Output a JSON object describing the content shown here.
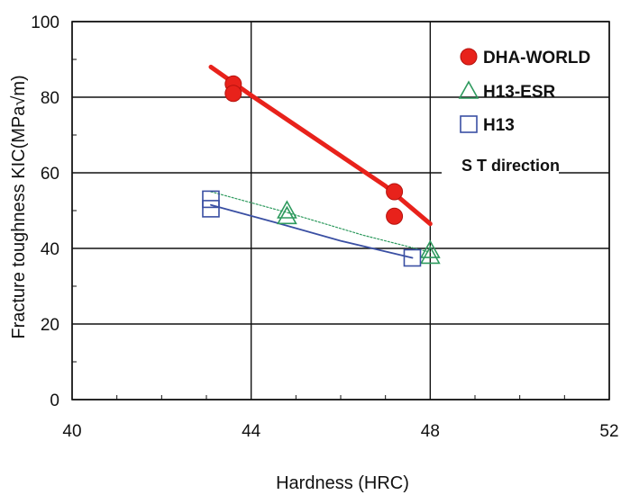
{
  "chart_data": {
    "type": "scatter",
    "title": "",
    "xlabel": "Hardness (HRC)",
    "ylabel": "Fracture toughness  KIC(MPa√m)",
    "xlim": [
      40,
      52
    ],
    "ylim": [
      0,
      100
    ],
    "x_ticks": [
      "40",
      "44",
      "48",
      "52"
    ],
    "y_ticks": [
      "0",
      "20",
      "40",
      "60",
      "80",
      "100"
    ],
    "grid": true,
    "legend_position": "top-right",
    "annotation": "S T direction",
    "series": [
      {
        "name": "DHA-WORLD",
        "marker": "filled-circle",
        "color": "#e8221b",
        "points": [
          [
            43.6,
            83.5
          ],
          [
            43.6,
            81.0
          ],
          [
            47.2,
            55.0
          ],
          [
            47.2,
            48.5
          ]
        ],
        "trend": [
          [
            43.1,
            88.0
          ],
          [
            44.0,
            80.5
          ],
          [
            45.0,
            72.5
          ],
          [
            46.0,
            64.5
          ],
          [
            47.0,
            56.5
          ],
          [
            48.0,
            46.5
          ]
        ]
      },
      {
        "name": "H13-ESR",
        "marker": "open-triangle",
        "color": "#2e9a5e",
        "points": [
          [
            44.8,
            50.0
          ],
          [
            44.8,
            48.5
          ],
          [
            48.0,
            39.5
          ],
          [
            48.0,
            38.0
          ]
        ],
        "trend": [
          [
            43.1,
            55.0
          ],
          [
            44.8,
            49.5
          ],
          [
            46.5,
            43.5
          ],
          [
            48.0,
            39.0
          ]
        ]
      },
      {
        "name": "H13",
        "marker": "open-square",
        "color": "#3a4fa3",
        "points": [
          [
            43.1,
            53.0
          ],
          [
            43.1,
            50.5
          ],
          [
            47.6,
            37.5
          ]
        ],
        "trend": [
          [
            43.1,
            51.5
          ],
          [
            44.5,
            47.0
          ],
          [
            46.0,
            42.0
          ],
          [
            47.6,
            37.5
          ]
        ]
      }
    ]
  }
}
